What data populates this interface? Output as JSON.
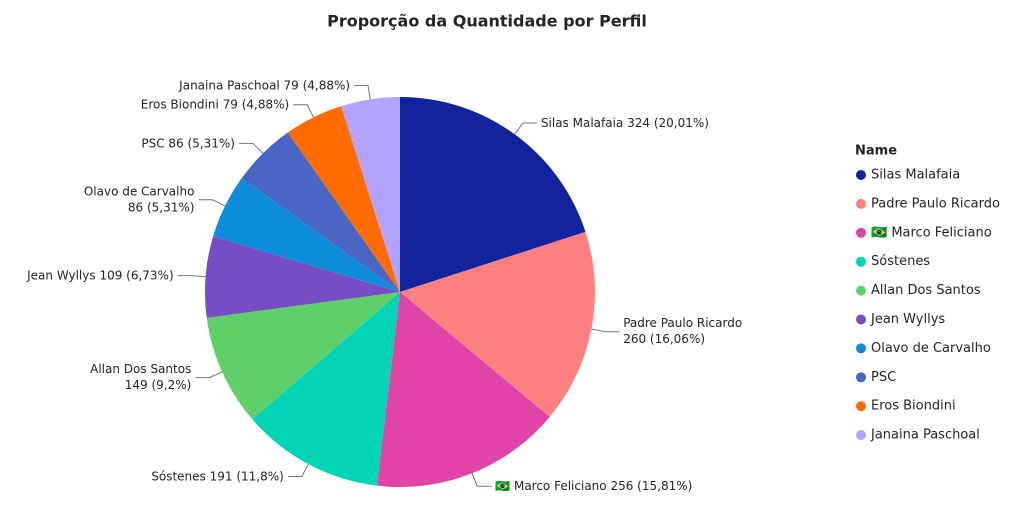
{
  "chart_data": {
    "type": "pie",
    "title": "Proporção da Quantidade por Perfil",
    "legend_title": "Name",
    "legend": "right",
    "categories": [
      "Silas Malafaia",
      "Padre Paulo Ricardo",
      "🇧🇷 Marco Feliciano",
      "Sóstenes",
      "Allan Dos Santos",
      "Jean Wyllys",
      "Olavo de Carvalho",
      "PSC",
      "Eros Biondini",
      "Janaina Paschoal"
    ],
    "values": [
      324,
      260,
      256,
      191,
      149,
      109,
      86,
      86,
      79,
      79
    ],
    "value_labels": [
      "324 (20,01%)",
      "260 (16,06%)",
      "256 (15,81%)",
      "191 (11,8%)",
      "149 (9,2%)",
      "109 (6,73%)",
      "86 (5,31%)",
      "86 (5,31%)",
      "79 (4,88%)",
      "79 (4,88%)"
    ],
    "colors": [
      "#12239E",
      "#FF8080",
      "#E044A7",
      "#01D5B6",
      "#5FD068",
      "#744EC2",
      "#0C8CDB",
      "#4A66C4",
      "#FF6B00",
      "#B3A3FF"
    ]
  }
}
